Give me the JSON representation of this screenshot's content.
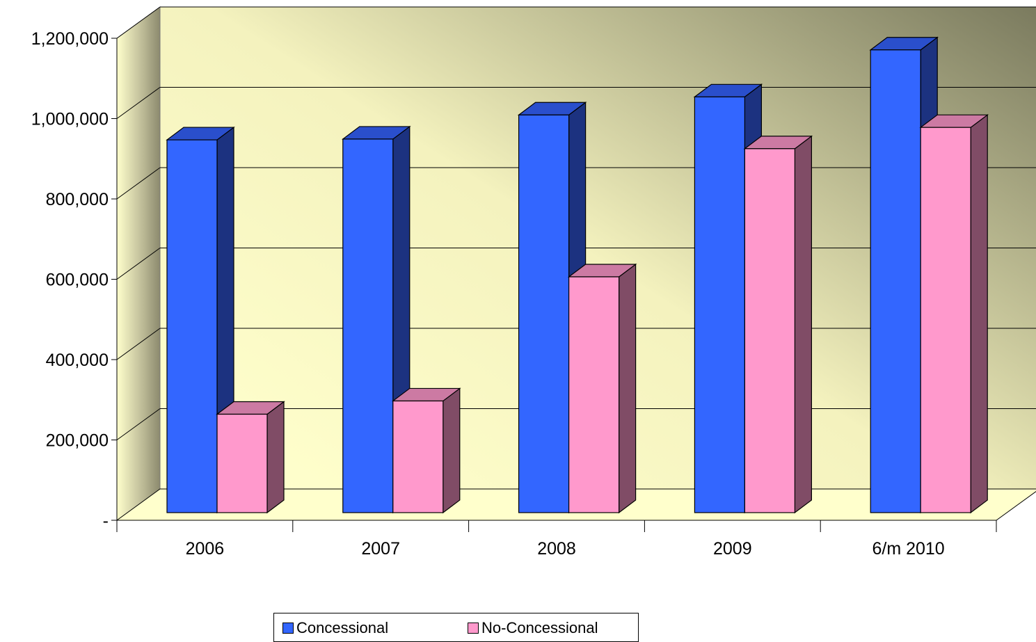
{
  "chart_data": {
    "type": "bar",
    "title": "",
    "xlabel": "",
    "ylabel": "",
    "categories": [
      "2006",
      "2007",
      "2008",
      "2009",
      "6/m 2010"
    ],
    "series": [
      {
        "name": "Concessional",
        "values": [
          928000,
          930000,
          990000,
          1035000,
          1152000
        ],
        "color": "#3366FF",
        "side_color": "#1C3280",
        "top_color": "#2A4FCC"
      },
      {
        "name": "No-Concessional",
        "values": [
          245000,
          278000,
          587000,
          906000,
          959000
        ],
        "color": "#FF99CC",
        "side_color": "#804C66",
        "top_color": "#CC7AA3"
      }
    ],
    "ylim": [
      0,
      1200000
    ],
    "yticks": [
      0,
      200000,
      400000,
      600000,
      800000,
      1000000,
      1200000
    ],
    "ytick_labels": [
      "-",
      "200,000",
      "400,000",
      "600,000",
      "800,000",
      "1,000,000",
      "1,200,000"
    ],
    "grid": true,
    "legend_position": "bottom",
    "style": "3d-clustered-column",
    "wall_gradient": [
      "#FFFFCC",
      "#7A7A5E"
    ],
    "floor_color": "#FFFFCC"
  }
}
